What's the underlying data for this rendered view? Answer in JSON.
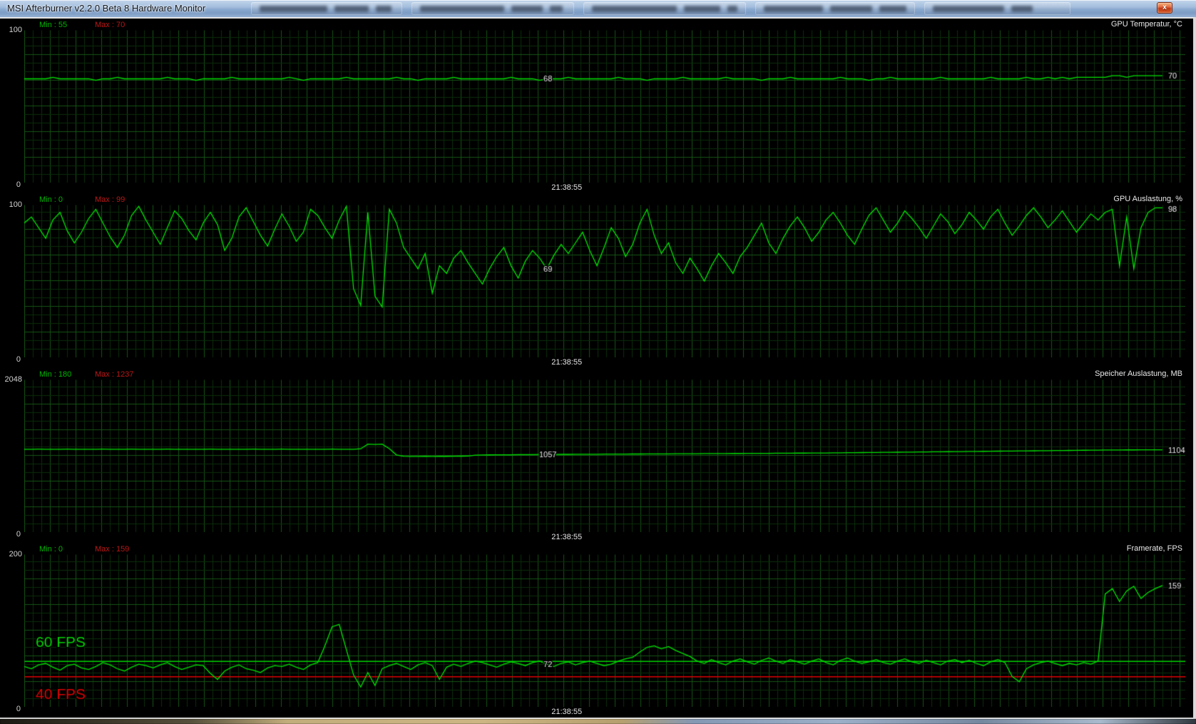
{
  "window": {
    "title": "MSI Afterburner v2.2.0 Beta 8 Hardware Monitor",
    "close_glyph": "x"
  },
  "colors": {
    "line": "#00e400",
    "grid_minor": "#0b2d0b",
    "grid_major": "#165416",
    "min_text": "#00b400",
    "max_text": "#bc1616",
    "label_text": "#e8e8e8",
    "overlay_green": "#00d400",
    "overlay_red": "#e00000",
    "titlebar_blue": "#8aa9cf",
    "close_orange": "#d2551f"
  },
  "panels": [
    {
      "name": "gpu-temperature",
      "title": "GPU Temperatur, °C",
      "min_label": "Min : 55",
      "max_label": "Max : 70",
      "scale_top": "100",
      "scale_bottom": "0",
      "mid_value": "68",
      "current_value": "70",
      "timestamp": "21:38:55",
      "ymax": 100,
      "series": [
        68,
        68,
        68,
        68,
        69,
        68,
        68,
        68,
        68,
        68,
        67,
        68,
        68,
        69,
        68,
        68,
        68,
        68,
        68,
        68,
        69,
        68,
        68,
        68,
        67,
        68,
        68,
        68,
        68,
        69,
        68,
        68,
        68,
        68,
        68,
        68,
        68,
        69,
        68,
        67,
        68,
        68,
        68,
        68,
        68,
        69,
        68,
        68,
        68,
        68,
        68,
        68,
        69,
        68,
        68,
        67,
        68,
        68,
        68,
        68,
        69,
        68,
        68,
        68,
        68,
        68,
        68,
        68,
        69,
        68,
        68,
        68,
        67,
        68,
        68,
        68,
        69,
        68,
        68,
        68,
        68,
        68,
        68,
        69,
        68,
        68,
        68,
        67,
        68,
        68,
        68,
        68,
        69,
        68,
        68,
        68,
        68,
        68,
        69,
        68,
        68,
        68,
        68,
        67,
        68,
        68,
        68,
        69,
        68,
        68,
        68,
        68,
        68,
        68,
        69,
        68,
        68,
        68,
        67,
        68,
        68,
        69,
        68,
        68,
        68,
        68,
        68,
        68,
        69,
        68,
        68,
        68,
        68,
        68,
        68,
        69,
        68,
        68,
        68,
        68,
        69,
        68,
        68,
        69,
        68,
        69,
        68,
        69,
        69,
        69,
        69,
        69,
        70,
        70,
        69,
        70,
        70,
        70,
        70,
        70
      ]
    },
    {
      "name": "gpu-usage",
      "title": "GPU Auslastung, %",
      "min_label": "Min : 0",
      "max_label": "Max : 99",
      "scale_top": "100",
      "scale_bottom": "0",
      "mid_value": "69",
      "current_value": "98",
      "timestamp": "21:38:55",
      "ymax": 100,
      "series": [
        88,
        92,
        85,
        78,
        90,
        95,
        83,
        75,
        82,
        91,
        97,
        88,
        79,
        72,
        80,
        93,
        99,
        90,
        82,
        74,
        85,
        96,
        91,
        83,
        77,
        88,
        95,
        87,
        70,
        78,
        92,
        98,
        89,
        80,
        73,
        84,
        94,
        86,
        76,
        82,
        97,
        93,
        85,
        78,
        90,
        99,
        45,
        34,
        95,
        40,
        33,
        97,
        88,
        72,
        65,
        58,
        68,
        42,
        60,
        55,
        65,
        70,
        62,
        55,
        48,
        58,
        66,
        72,
        60,
        52,
        63,
        70,
        65,
        58,
        67,
        74,
        68,
        75,
        82,
        70,
        60,
        72,
        85,
        78,
        66,
        74,
        88,
        97,
        80,
        68,
        75,
        62,
        55,
        65,
        58,
        50,
        60,
        68,
        62,
        55,
        66,
        72,
        80,
        88,
        75,
        68,
        78,
        86,
        92,
        85,
        76,
        82,
        90,
        95,
        88,
        80,
        74,
        84,
        93,
        98,
        90,
        82,
        88,
        96,
        91,
        85,
        78,
        86,
        94,
        89,
        81,
        87,
        95,
        90,
        84,
        92,
        97,
        88,
        80,
        86,
        93,
        98,
        92,
        85,
        90,
        96,
        89,
        82,
        88,
        94,
        90,
        95,
        97,
        60,
        92,
        58,
        85,
        95,
        98,
        98
      ]
    },
    {
      "name": "memory-usage",
      "title": "Speicher Auslastung, MB",
      "min_label": "Min : 180",
      "max_label": "Max : 1237",
      "scale_top": "2048",
      "scale_bottom": "0",
      "mid_value": "1057",
      "current_value": "1104",
      "timestamp": "21:38:55",
      "ymax": 2048,
      "series": [
        1112,
        1112,
        1113,
        1112,
        1112,
        1112,
        1113,
        1112,
        1112,
        1112,
        1112,
        1113,
        1112,
        1112,
        1112,
        1113,
        1112,
        1112,
        1112,
        1112,
        1113,
        1112,
        1112,
        1112,
        1112,
        1112,
        1113,
        1112,
        1112,
        1112,
        1112,
        1112,
        1113,
        1112,
        1112,
        1112,
        1113,
        1112,
        1112,
        1112,
        1112,
        1112,
        1112,
        1113,
        1112,
        1112,
        1112,
        1118,
        1180,
        1175,
        1180,
        1120,
        1035,
        1018,
        1015,
        1016,
        1017,
        1016,
        1018,
        1017,
        1018,
        1019,
        1020,
        1032,
        1035,
        1036,
        1037,
        1038,
        1038,
        1039,
        1040,
        1040,
        1041,
        1042,
        1042,
        1043,
        1043,
        1044,
        1044,
        1045,
        1045,
        1046,
        1046,
        1047,
        1047,
        1048,
        1048,
        1049,
        1049,
        1050,
        1050,
        1051,
        1051,
        1052,
        1052,
        1053,
        1053,
        1054,
        1054,
        1055,
        1055,
        1056,
        1056,
        1057,
        1057,
        1058,
        1058,
        1059,
        1060,
        1060,
        1061,
        1062,
        1062,
        1063,
        1064,
        1065,
        1066,
        1067,
        1068,
        1069,
        1070,
        1071,
        1072,
        1073,
        1074,
        1075,
        1076,
        1077,
        1078,
        1079,
        1080,
        1081,
        1082,
        1083,
        1084,
        1085,
        1086,
        1087,
        1088,
        1089,
        1090,
        1091,
        1092,
        1093,
        1094,
        1095,
        1096,
        1097,
        1098,
        1099,
        1100,
        1101,
        1102,
        1102,
        1103,
        1103,
        1104,
        1104,
        1104,
        1104
      ]
    },
    {
      "name": "framerate",
      "title": "Framerate, FPS",
      "min_label": "Min : 0",
      "max_label": "Max : 159",
      "scale_top": "200",
      "scale_bottom": "0",
      "mid_value": "72",
      "current_value": "159",
      "timestamp": "21:38:55",
      "ymax": 200,
      "overlays": {
        "green_line_value": 60,
        "green_label": "60 FPS",
        "red_line_value": 40,
        "red_label": "40 FPS"
      },
      "series": [
        53,
        50,
        55,
        57,
        52,
        48,
        54,
        56,
        51,
        49,
        53,
        58,
        55,
        50,
        47,
        52,
        56,
        54,
        51,
        55,
        58,
        53,
        49,
        52,
        55,
        54,
        44,
        36,
        47,
        52,
        55,
        50,
        48,
        45,
        51,
        54,
        53,
        56,
        52,
        49,
        55,
        58,
        80,
        105,
        108,
        75,
        42,
        26,
        45,
        28,
        50,
        54,
        57,
        53,
        49,
        55,
        58,
        54,
        36,
        52,
        56,
        53,
        57,
        60,
        58,
        55,
        52,
        56,
        59,
        57,
        54,
        58,
        60,
        56,
        53,
        57,
        59,
        55,
        58,
        60,
        57,
        54,
        56,
        60,
        63,
        65,
        72,
        78,
        80,
        76,
        79,
        74,
        70,
        66,
        60,
        57,
        62,
        58,
        55,
        60,
        63,
        59,
        56,
        61,
        64,
        60,
        57,
        62,
        59,
        56,
        60,
        63,
        58,
        55,
        61,
        64,
        60,
        57,
        59,
        62,
        58,
        56,
        60,
        63,
        59,
        57,
        61,
        58,
        55,
        60,
        62,
        58,
        61,
        57,
        54,
        59,
        62,
        58,
        40,
        33,
        50,
        55,
        58,
        60,
        57,
        54,
        57,
        55,
        58,
        56,
        60,
        148,
        155,
        138,
        152,
        158,
        142,
        150,
        155,
        159
      ]
    }
  ]
}
